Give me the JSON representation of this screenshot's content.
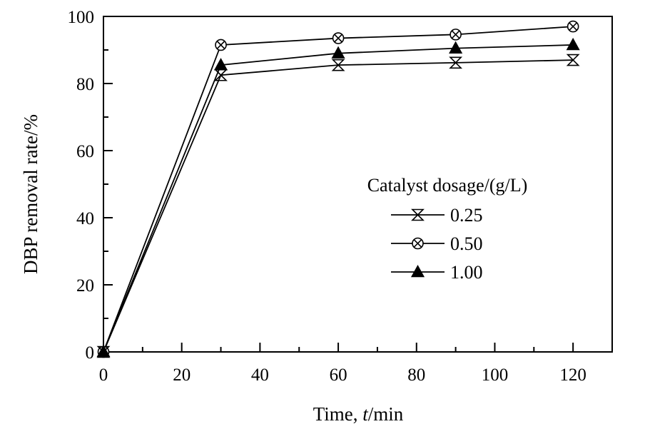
{
  "figure": {
    "background": "#ffffff",
    "foreground": "#000000"
  },
  "chart_data": {
    "type": "line",
    "title": "",
    "xlabel_prefix": "Time, ",
    "xlabel_italic": "t",
    "xlabel_suffix": "/min",
    "ylabel": "DBP removal rate/%",
    "xlim": [
      0,
      130
    ],
    "ylim": [
      0,
      100
    ],
    "xticks_major": [
      0,
      20,
      40,
      60,
      80,
      100,
      120
    ],
    "xticks_minor": [
      10,
      30,
      50,
      70,
      90,
      110,
      130
    ],
    "yticks_major": [
      0,
      20,
      40,
      60,
      80,
      100
    ],
    "yticks_minor": [
      10,
      30,
      50,
      70,
      90
    ],
    "grid": false,
    "x": [
      0,
      30,
      60,
      90,
      120
    ],
    "series": [
      {
        "name": "0.25",
        "marker": "hourglass-x",
        "fill": "open",
        "values": [
          0,
          82.5,
          85.5,
          86.2,
          87.0
        ]
      },
      {
        "name": "0.50",
        "marker": "circle-x",
        "fill": "open",
        "values": [
          0,
          91.5,
          93.5,
          94.6,
          97.0
        ]
      },
      {
        "name": "1.00",
        "marker": "triangle",
        "fill": "filled",
        "values": [
          0,
          85.5,
          89.0,
          90.5,
          91.5
        ]
      }
    ],
    "legend": {
      "title": "Catalyst dosage/(g/L)",
      "position": "right-center",
      "entries": [
        "0.25",
        "0.50",
        "1.00"
      ]
    },
    "colors": {
      "line": "#000000",
      "background": "#ffffff"
    }
  }
}
